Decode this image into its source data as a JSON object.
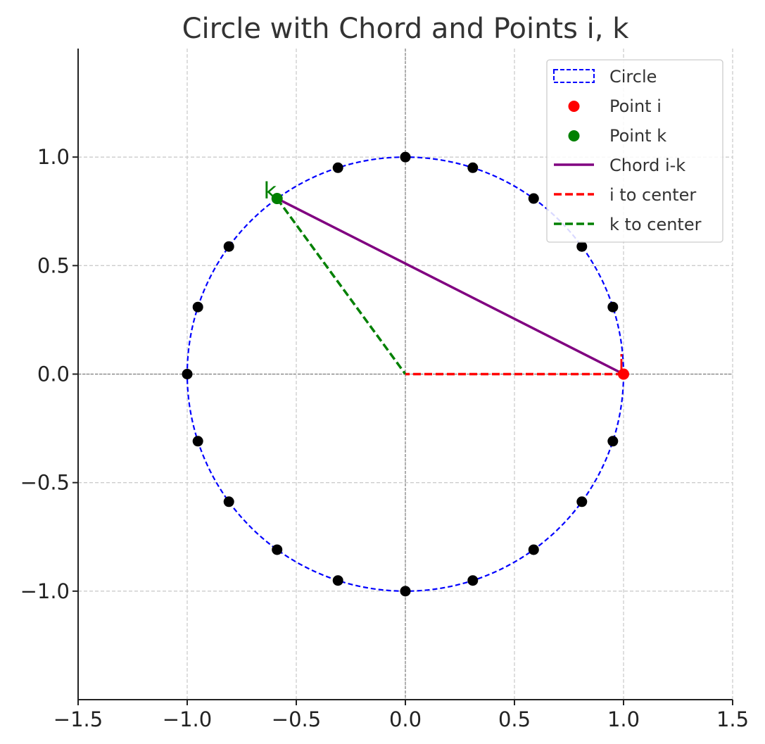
{
  "chart_data": {
    "type": "scatter",
    "title": "Circle with Chord and Points i, k",
    "xlabel": "",
    "ylabel": "",
    "xlim": [
      -1.5,
      1.5
    ],
    "ylim": [
      -1.5,
      1.5
    ],
    "grid": true,
    "legend_position": "top-right",
    "x_ticks": [
      -1.5,
      -1.0,
      -0.5,
      0.0,
      0.5,
      1.0,
      1.5
    ],
    "x_tick_labels": [
      "−1.5",
      "−1.0",
      "−0.5",
      "0.0",
      "0.5",
      "1.0",
      "1.5"
    ],
    "y_ticks": [
      1.0,
      0.5,
      0.0,
      -0.5,
      -1.0
    ],
    "y_tick_labels": [
      "1.0",
      "0.5",
      "0.0",
      "−0.5",
      "−1.0"
    ],
    "circle": {
      "center": [
        0,
        0
      ],
      "radius": 1,
      "color": "#0000ff",
      "style": "dashed"
    },
    "points": [
      [
        1.0,
        0.0
      ],
      [
        0.951,
        0.309
      ],
      [
        0.809,
        0.588
      ],
      [
        0.588,
        0.809
      ],
      [
        0.309,
        0.951
      ],
      [
        0.0,
        1.0
      ],
      [
        -0.309,
        0.951
      ],
      [
        -0.588,
        0.809
      ],
      [
        -0.809,
        0.588
      ],
      [
        -0.951,
        0.309
      ],
      [
        -1.0,
        0.0
      ],
      [
        -0.951,
        -0.309
      ],
      [
        -0.809,
        -0.588
      ],
      [
        -0.588,
        -0.809
      ],
      [
        -0.309,
        -0.951
      ],
      [
        0.0,
        -1.0
      ],
      [
        0.309,
        -0.951
      ],
      [
        0.588,
        -0.809
      ],
      [
        0.809,
        -0.588
      ],
      [
        0.951,
        -0.309
      ]
    ],
    "point_i": {
      "label": "i",
      "x": 1.0,
      "y": 0.0,
      "color": "#ff0000"
    },
    "point_k": {
      "label": "k",
      "x": -0.588,
      "y": 0.809,
      "color": "#008000"
    },
    "chord": {
      "from": [
        1.0,
        0.0
      ],
      "to": [
        -0.588,
        0.809
      ],
      "color": "#800080"
    },
    "i_to_center": {
      "from": [
        1.0,
        0.0
      ],
      "to": [
        0,
        0
      ],
      "color": "#ff0000"
    },
    "k_to_center": {
      "from": [
        -0.588,
        0.809
      ],
      "to": [
        0,
        0
      ],
      "color": "#008000"
    },
    "legend": [
      {
        "name": "Circle",
        "kind": "patch-dashed",
        "color": "#0000ff"
      },
      {
        "name": "Point i",
        "kind": "marker",
        "color": "#ff0000"
      },
      {
        "name": "Point k",
        "kind": "marker",
        "color": "#008000"
      },
      {
        "name": "Chord i-k",
        "kind": "line",
        "color": "#800080"
      },
      {
        "name": "i to center",
        "kind": "line-dashed",
        "color": "#ff0000"
      },
      {
        "name": "k to center",
        "kind": "line-dashed",
        "color": "#008000"
      }
    ]
  }
}
